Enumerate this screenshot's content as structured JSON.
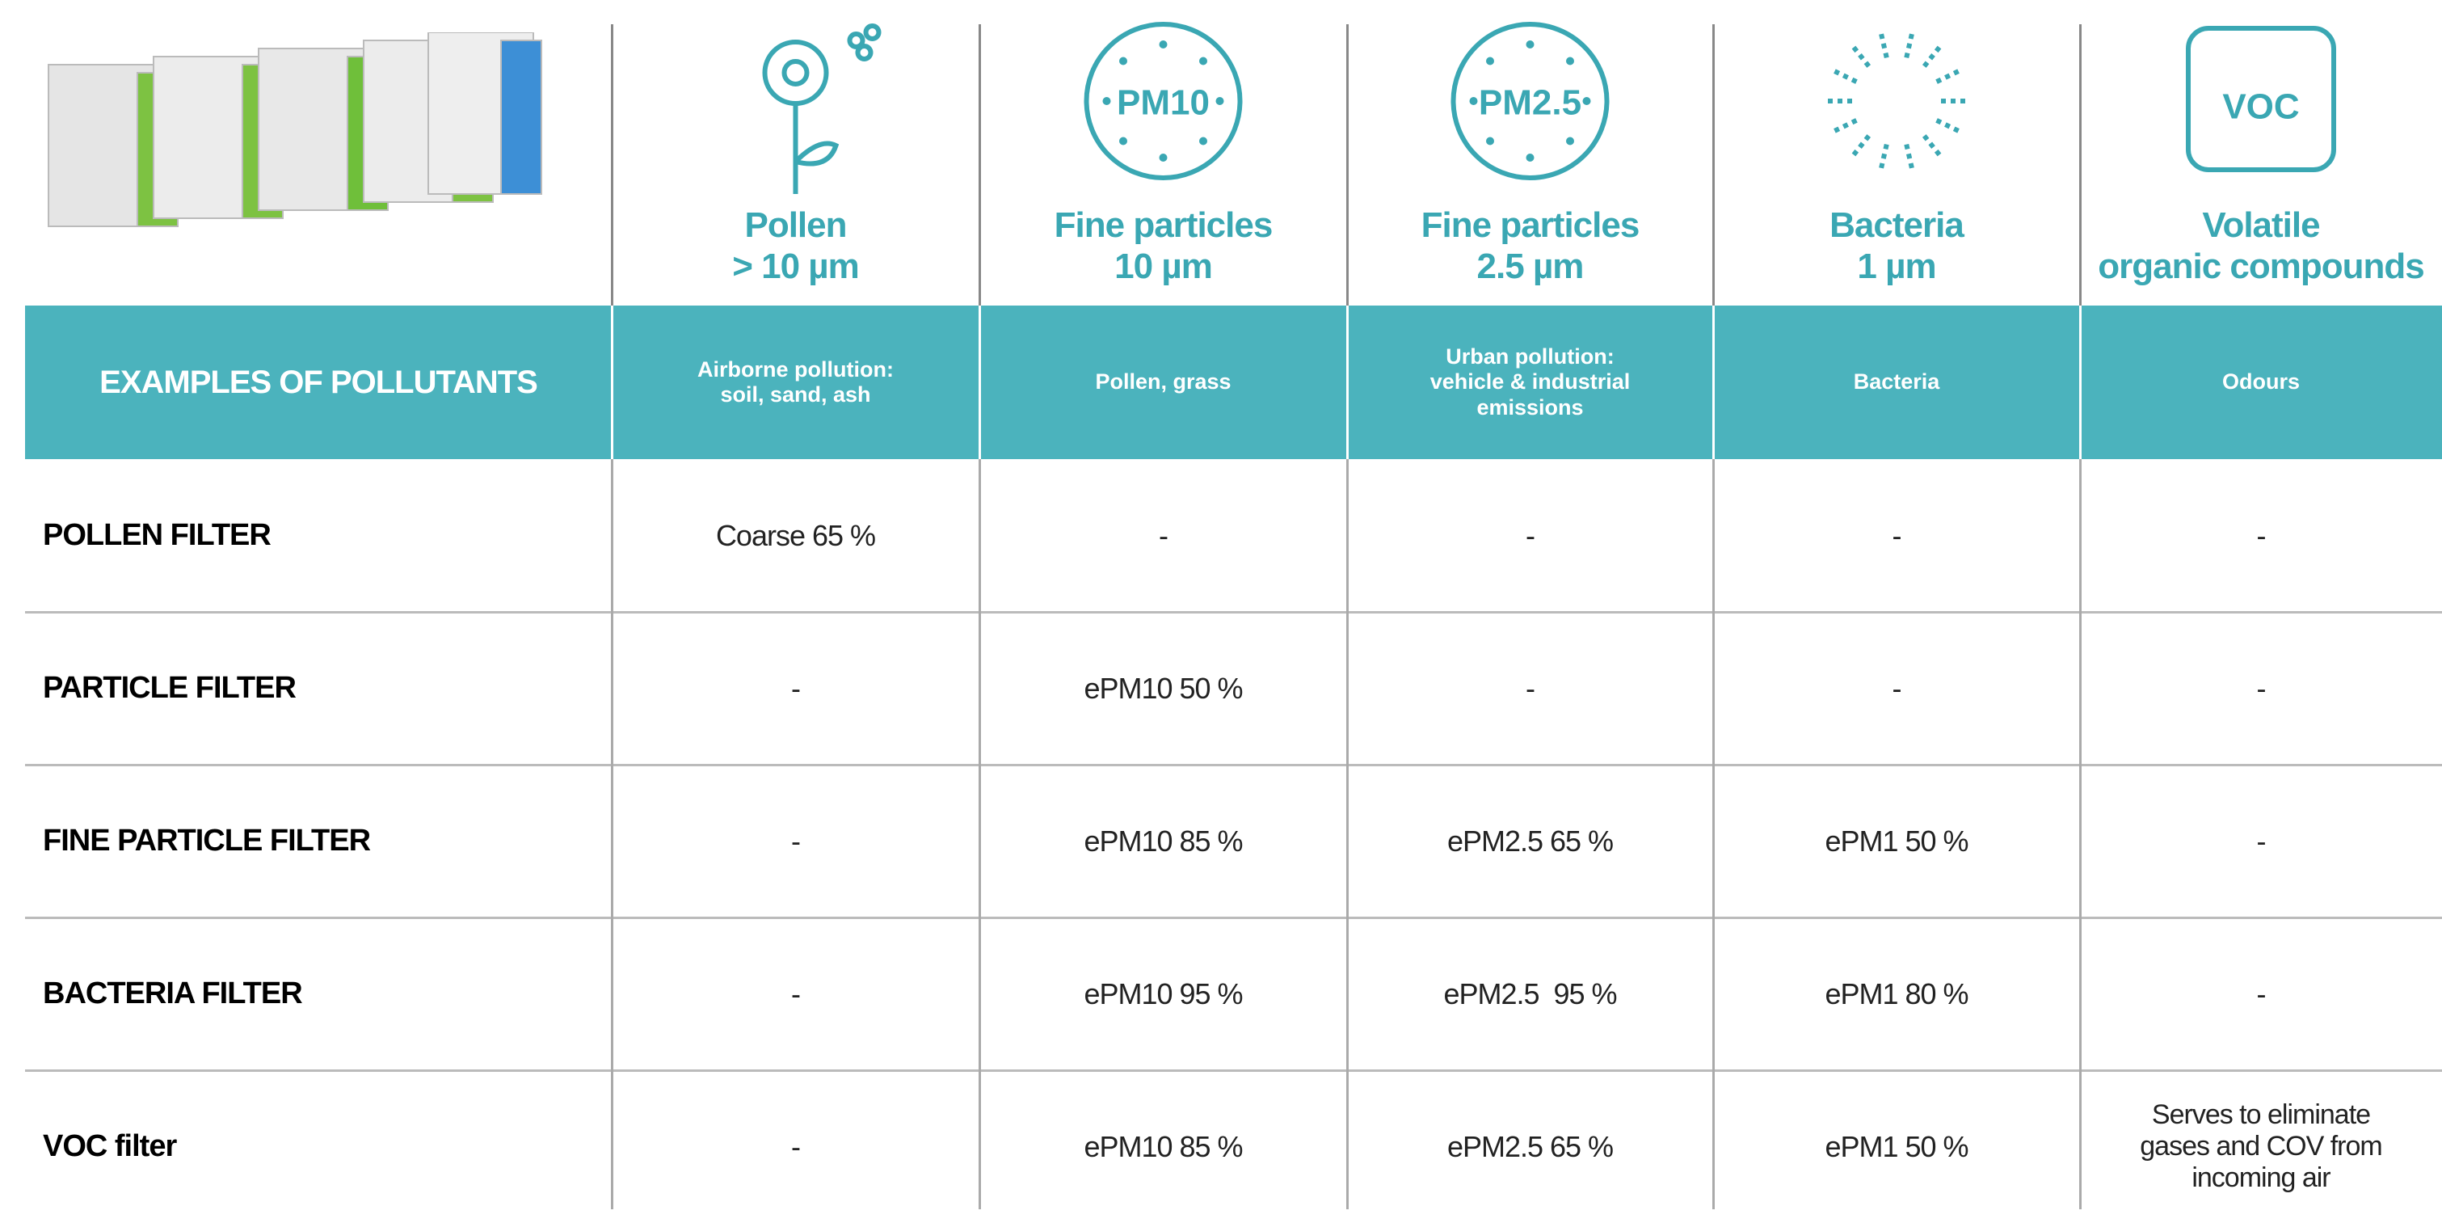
{
  "examples_label": "EXAMPLES OF POLLUTANTS",
  "columns": [
    {
      "title": "Pollen\n> 10 µm",
      "example": "Airborne pollution:\nsoil, sand, ash"
    },
    {
      "icon_text": "PM10",
      "title": "Fine particles\n10 µm",
      "example": "Pollen, grass"
    },
    {
      "icon_text": "PM2.5",
      "title": "Fine particles\n2.5 µm",
      "example": "Urban pollution:\nvehicle & industrial\nemissions"
    },
    {
      "title": "Bacteria\n1 µm",
      "example": "Bacteria"
    },
    {
      "icon_text": "VOC",
      "title": "Volatile\norganic compounds",
      "example": "Odours"
    }
  ],
  "rows": [
    {
      "label": "POLLEN FILTER",
      "cells": [
        "Coarse 65 %",
        "-",
        "-",
        "-",
        "-"
      ]
    },
    {
      "label": "PARTICLE FILTER",
      "cells": [
        "-",
        "ePM10 50 %",
        "-",
        "-",
        "-"
      ]
    },
    {
      "label": "FINE PARTICLE FILTER",
      "cells": [
        "-",
        "ePM10 85 %",
        "ePM2.5 65 %",
        "ePM1 50 %",
        "-"
      ]
    },
    {
      "label": "BACTERIA FILTER",
      "cells": [
        "-",
        "ePM10 95 %",
        "ePM2.5  95 %",
        "ePM1 80 %",
        "-"
      ]
    },
    {
      "label": "VOC filter",
      "cells": [
        "-",
        "ePM10 85 %",
        "ePM2.5 65 %",
        "ePM1 50 %",
        "Serves to eliminate\ngases and COV from\nincoming air"
      ]
    }
  ]
}
